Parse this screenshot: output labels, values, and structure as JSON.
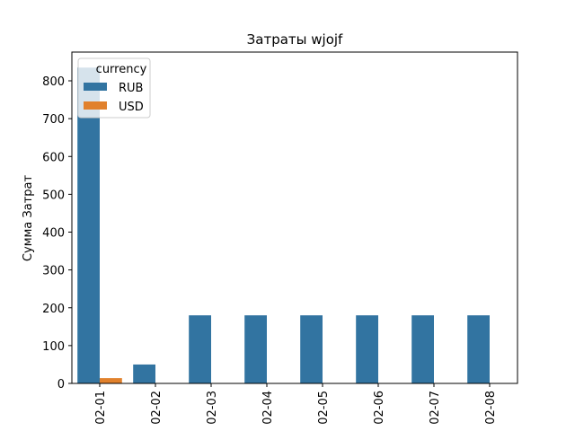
{
  "chart_data": {
    "type": "bar",
    "title": "Затраты wjojf",
    "xlabel": "",
    "ylabel": "Сумма Затрат",
    "categories": [
      "02-01",
      "02-02",
      "02-03",
      "02-04",
      "02-05",
      "02-06",
      "02-07",
      "02-08"
    ],
    "series": [
      {
        "name": "RUB",
        "color": "#3274a1",
        "values": [
          835,
          50,
          180,
          180,
          180,
          180,
          180,
          180
        ]
      },
      {
        "name": "USD",
        "color": "#e1812c",
        "values": [
          14,
          0,
          0,
          0,
          0,
          0,
          0,
          0
        ]
      }
    ],
    "ylim": [
      0,
      876
    ],
    "yticks": [
      0,
      100,
      200,
      300,
      400,
      500,
      600,
      700,
      800
    ],
    "grid": false,
    "legend": {
      "title": "currency",
      "placement": "top-left"
    }
  }
}
